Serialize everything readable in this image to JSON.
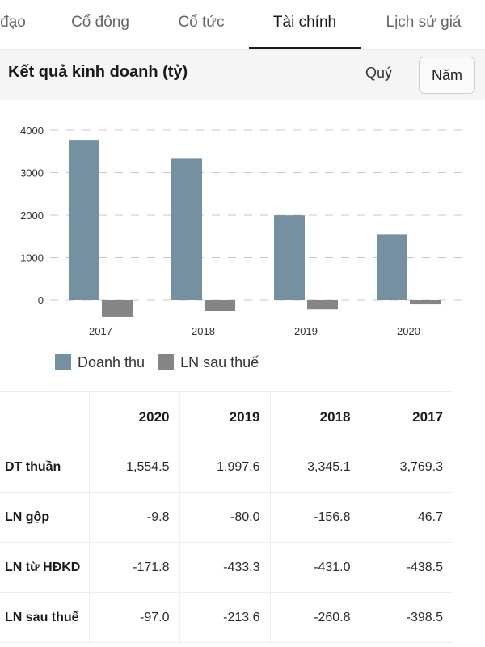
{
  "tabs": [
    {
      "label": "đạo",
      "active": false
    },
    {
      "label": "Cổ đông",
      "active": false
    },
    {
      "label": "Cổ tức",
      "active": false
    },
    {
      "label": "Tài chính",
      "active": true
    },
    {
      "label": "Lịch sử giá",
      "active": false
    }
  ],
  "section": {
    "title": "Kết quả kinh doanh (tỷ)",
    "period_options": [
      "Quý",
      "Năm"
    ],
    "selected_period": "Năm"
  },
  "colors": {
    "revenue": "#7590a0",
    "profit": "#858585",
    "active_tab": "#1a1a1a"
  },
  "chart_data": {
    "type": "bar",
    "categories": [
      "2017",
      "2018",
      "2019",
      "2020"
    ],
    "series": [
      {
        "name": "Doanh thu",
        "values": [
          3769.3,
          3345.1,
          1997.6,
          1554.5
        ]
      },
      {
        "name": "LN sau thuế",
        "values": [
          -398.5,
          -260.8,
          -213.6,
          -97.0
        ]
      }
    ],
    "y_ticks": [
      "4000",
      "3000",
      "2000",
      "1000",
      "0"
    ],
    "ylim": [
      -500,
      4000
    ],
    "grid": true,
    "legend_position": "bottom-left"
  },
  "table": {
    "columns": [
      "2020",
      "2019",
      "2018",
      "2017"
    ],
    "rows": [
      {
        "label": "DT thuần",
        "values": [
          "1,554.5",
          "1,997.6",
          "3,345.1",
          "3,769.3"
        ]
      },
      {
        "label": "LN gộp",
        "values": [
          "-9.8",
          "-80.0",
          "-156.8",
          "46.7"
        ]
      },
      {
        "label": "LN từ HĐKD",
        "values": [
          "-171.8",
          "-433.3",
          "-431.0",
          "-438.5"
        ]
      },
      {
        "label": "LN sau thuế",
        "values": [
          "-97.0",
          "-213.6",
          "-260.8",
          "-398.5"
        ]
      }
    ]
  }
}
